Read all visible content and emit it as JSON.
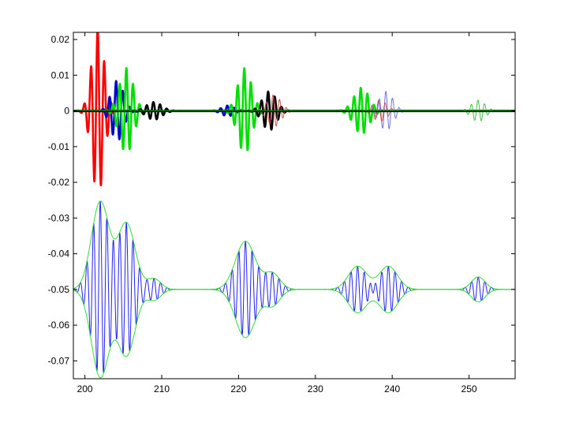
{
  "chart_data": {
    "type": "line",
    "title": "",
    "xlabel": "",
    "ylabel": "",
    "xlim": [
      198.5,
      256
    ],
    "ylim": [
      -0.075,
      0.022
    ],
    "grid": false,
    "legend": "none",
    "x_ticks": [
      200,
      210,
      220,
      230,
      240,
      250
    ],
    "x_tick_labels": [
      "200",
      "210",
      "220",
      "230",
      "240",
      "250"
    ],
    "y_ticks": [
      0.02,
      0.01,
      0,
      -0.01,
      -0.02,
      -0.03,
      -0.04,
      -0.05,
      -0.06,
      -0.07
    ],
    "y_tick_labels": [
      "0.02",
      "0.01",
      "0",
      "-0.01",
      "-0.02",
      "-0.03",
      "-0.04",
      "-0.05",
      "-0.06",
      "-0.07"
    ],
    "series": [
      {
        "color": "#ff0000",
        "style": "thick",
        "offset": 0,
        "packets": [
          {
            "center": 201.7,
            "amp": 0.0235,
            "sigma": 0.8,
            "freq": 1.15,
            "phase": 0.3
          }
        ]
      },
      {
        "color": "#0000cc",
        "style": "thick",
        "offset": 0,
        "packets": [
          {
            "center": 204.2,
            "amp": 0.0085,
            "sigma": 0.8,
            "freq": 1.15,
            "phase": 1.0
          },
          {
            "center": 218.6,
            "amp": 0.0015,
            "sigma": 0.8,
            "freq": 1.15,
            "phase": 0.5
          }
        ]
      },
      {
        "color": "#00e000",
        "style": "thick",
        "offset": 0,
        "packets": [
          {
            "center": 205.4,
            "amp": 0.012,
            "sigma": 0.9,
            "freq": 1.15,
            "phase": 0.0
          },
          {
            "center": 220.8,
            "amp": 0.012,
            "sigma": 0.9,
            "freq": 1.15,
            "phase": 0.4
          },
          {
            "center": 236.0,
            "amp": 0.0065,
            "sigma": 1.0,
            "freq": 1.15,
            "phase": 0.7
          }
        ]
      },
      {
        "color": "#000000",
        "style": "thick",
        "offset": 0,
        "packets": [
          {
            "center": 209.0,
            "amp": 0.0025,
            "sigma": 1.0,
            "freq": 1.15,
            "phase": 0.6
          },
          {
            "center": 224.0,
            "amp": 0.0055,
            "sigma": 0.9,
            "freq": 1.15,
            "phase": 1.1
          }
        ]
      },
      {
        "color": "#7070e0",
        "style": "thin",
        "offset": 0,
        "packets": [
          {
            "center": 239.2,
            "amp": 0.0055,
            "sigma": 0.9,
            "freq": 1.15,
            "phase": 0.2
          }
        ]
      },
      {
        "color": "#cc5050",
        "style": "thin",
        "offset": 0,
        "packets": [
          {
            "center": 224.6,
            "amp": 0.0045,
            "sigma": 0.9,
            "freq": 1.15,
            "phase": 0.9
          },
          {
            "center": 238.4,
            "amp": 0.003,
            "sigma": 0.9,
            "freq": 1.15,
            "phase": 1.3
          }
        ]
      },
      {
        "color": "#40c040",
        "style": "thin",
        "offset": 0,
        "packets": [
          {
            "center": 251.2,
            "amp": 0.003,
            "sigma": 0.9,
            "freq": 1.15,
            "phase": 0.3
          }
        ]
      },
      {
        "color": "#2020ff",
        "style": "thin",
        "offset": -0.05,
        "kind": "carrier",
        "packets": [
          {
            "center": 202.0,
            "amp": 0.0245,
            "sigma": 1.15
          },
          {
            "center": 205.4,
            "amp": 0.0185,
            "sigma": 1.15
          },
          {
            "center": 209.0,
            "amp": 0.003,
            "sigma": 0.9
          },
          {
            "center": 220.9,
            "amp": 0.0135,
            "sigma": 1.3
          },
          {
            "center": 224.4,
            "amp": 0.0045,
            "sigma": 1.0
          },
          {
            "center": 235.5,
            "amp": 0.0065,
            "sigma": 1.2
          },
          {
            "center": 239.5,
            "amp": 0.0065,
            "sigma": 1.2
          },
          {
            "center": 251.2,
            "amp": 0.0035,
            "sigma": 0.9
          }
        ]
      },
      {
        "color": "#33dd33",
        "style": "thin",
        "offset": -0.05,
        "kind": "envelope",
        "packets": [
          {
            "center": 202.0,
            "amp": 0.0245,
            "sigma": 1.15
          },
          {
            "center": 205.4,
            "amp": 0.0185,
            "sigma": 1.15
          },
          {
            "center": 209.0,
            "amp": 0.003,
            "sigma": 0.9
          },
          {
            "center": 220.9,
            "amp": 0.0135,
            "sigma": 1.3
          },
          {
            "center": 224.4,
            "amp": 0.0045,
            "sigma": 1.0
          },
          {
            "center": 235.5,
            "amp": 0.0065,
            "sigma": 1.2
          },
          {
            "center": 239.5,
            "amp": 0.0065,
            "sigma": 1.2
          },
          {
            "center": 251.2,
            "amp": 0.0035,
            "sigma": 0.9
          }
        ]
      }
    ]
  }
}
